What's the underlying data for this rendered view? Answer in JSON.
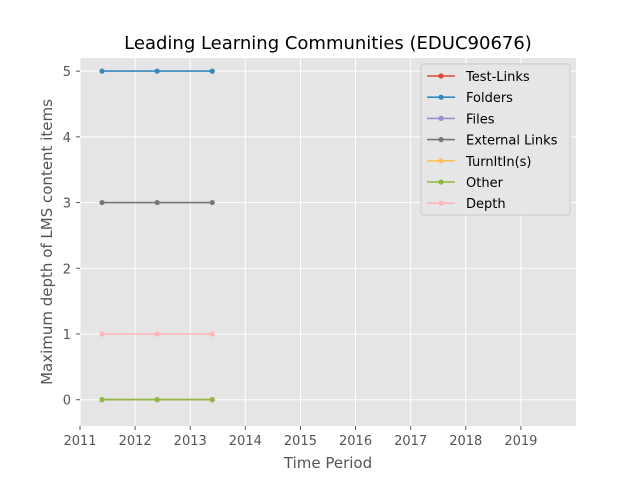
{
  "chart_data": {
    "type": "line",
    "title": "Leading Learning Communities (EDUC90676)",
    "xlabel": "Time Period",
    "ylabel": "Maximum depth of LMS content items",
    "x": [
      2011.4,
      2012.4,
      2013.4
    ],
    "xlim": [
      2011,
      2020
    ],
    "ylim": [
      -0.4,
      5.2
    ],
    "xticks": [
      2011,
      2012,
      2013,
      2014,
      2015,
      2016,
      2017,
      2018,
      2019
    ],
    "yticks": [
      0,
      1,
      2,
      3,
      4,
      5
    ],
    "grid": true,
    "legend_position": "top-right",
    "series": [
      {
        "name": "Test-Links",
        "color": "#e24a33",
        "values": [
          0,
          0,
          0
        ]
      },
      {
        "name": "Folders",
        "color": "#348abd",
        "values": [
          5,
          5,
          5
        ]
      },
      {
        "name": "Files",
        "color": "#988ed5",
        "values": [
          0,
          0,
          0
        ]
      },
      {
        "name": "External Links",
        "color": "#777777",
        "values": [
          3,
          3,
          3
        ]
      },
      {
        "name": "TurnItIn(s)",
        "color": "#fbc15e",
        "values": [
          0,
          0,
          0
        ]
      },
      {
        "name": "Other",
        "color": "#8eba42",
        "values": [
          0,
          0,
          0
        ]
      },
      {
        "name": "Depth",
        "color": "#ffb5b8",
        "values": [
          1,
          1,
          1
        ]
      }
    ]
  }
}
